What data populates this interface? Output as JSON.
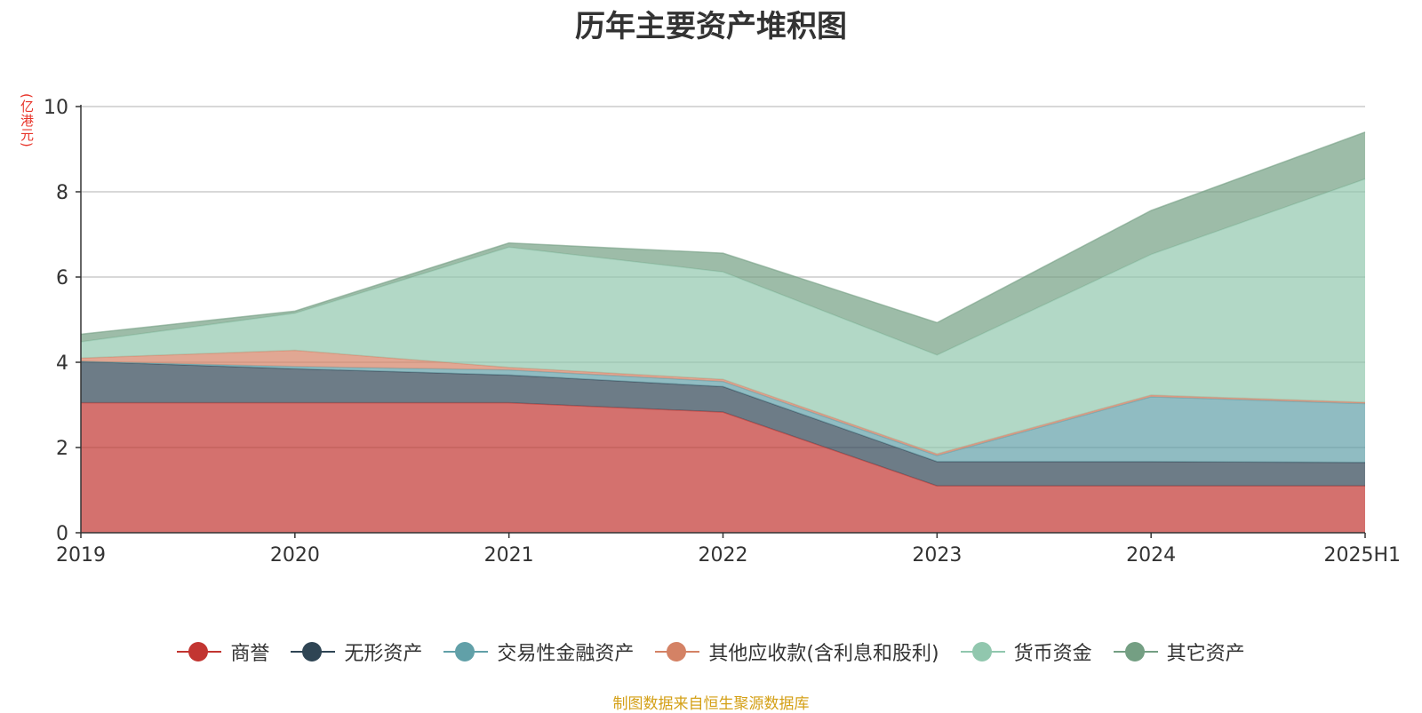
{
  "chart_data": {
    "type": "area",
    "stacked": true,
    "title": "历年主要资产堆积图",
    "unit": "(亿港元)",
    "categories": [
      "2019",
      "2020",
      "2021",
      "2022",
      "2023",
      "2024",
      "2025H1"
    ],
    "ylim": [
      0,
      10
    ],
    "yticks": [
      "0",
      "2",
      "4",
      "6",
      "8",
      "10"
    ],
    "grid": true,
    "legend_position": "bottom",
    "series": [
      {
        "name": "商誉",
        "color": "#c23531",
        "values": [
          3.05,
          3.05,
          3.05,
          2.83,
          1.1,
          1.1,
          1.1
        ]
      },
      {
        "name": "无形资产",
        "color": "#2f4554",
        "values": [
          0.97,
          0.8,
          0.65,
          0.6,
          0.57,
          0.57,
          0.55
        ]
      },
      {
        "name": "交易性金融资产",
        "color": "#61a0a8",
        "values": [
          0.0,
          0.05,
          0.12,
          0.12,
          0.14,
          1.52,
          1.38
        ]
      },
      {
        "name": "其他应收款(含利息和股利)",
        "color": "#d48265",
        "values": [
          0.08,
          0.38,
          0.06,
          0.05,
          0.04,
          0.04,
          0.03
        ]
      },
      {
        "name": "货币资金",
        "color": "#91c7ae",
        "values": [
          0.38,
          0.87,
          2.82,
          2.52,
          2.32,
          3.3,
          5.24
        ]
      },
      {
        "name": "其它资产",
        "color": "#749f83",
        "values": [
          0.18,
          0.05,
          0.1,
          0.44,
          0.76,
          1.03,
          1.1
        ]
      }
    ]
  },
  "footer": {
    "source": "制图数据来自恒生聚源数据库"
  }
}
